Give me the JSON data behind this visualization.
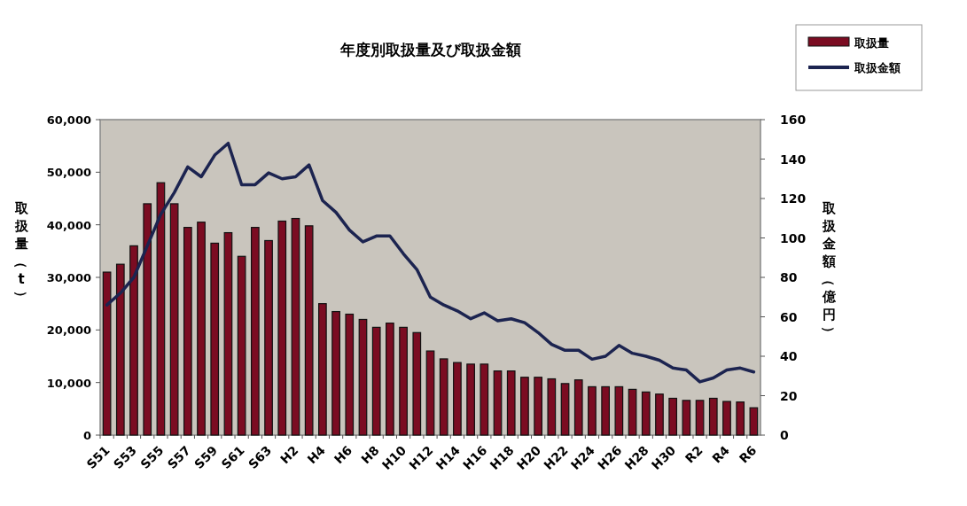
{
  "chart_data": {
    "type": "bar",
    "title": "年度別取扱量及び取扱金額",
    "ylabel": "取扱量（t）",
    "y2label": "取扱金額（億円）",
    "categories": [
      "S51",
      null,
      "S53",
      null,
      "S55",
      null,
      "S57",
      null,
      "S59",
      null,
      "S61",
      null,
      "S63",
      null,
      "H2",
      null,
      "H4",
      null,
      "H6",
      null,
      "H8",
      null,
      "H10",
      null,
      "H12",
      null,
      "H14",
      null,
      "H16",
      null,
      "H18",
      null,
      "H20",
      null,
      "H22",
      null,
      "H24",
      null,
      "H26",
      null,
      "H28",
      null,
      "H30",
      null,
      "R2",
      null,
      "R4",
      null,
      "R6"
    ],
    "series": [
      {
        "name": "取扱量",
        "color": "#7b0c22",
        "values": [
          31000,
          32500,
          36000,
          44000,
          48000,
          44000,
          39500,
          40500,
          36500,
          38500,
          34000,
          39500,
          37000,
          40700,
          41200,
          39800,
          25000,
          23500,
          23000,
          22000,
          20500,
          21300,
          20500,
          19500,
          16000,
          14500,
          13800,
          13500,
          13500,
          12200,
          12200,
          11000,
          11000,
          10700,
          9800,
          10500,
          9200,
          9200,
          9200,
          8700,
          8200,
          7800,
          7000,
          6600,
          6600,
          7000,
          6400,
          6300,
          5200
        ]
      },
      {
        "name": "取扱金額",
        "type": "line",
        "axis": "y2",
        "color": "#1c2450",
        "values": [
          66,
          72,
          80,
          96,
          112,
          123,
          136,
          131,
          142,
          148,
          127,
          127,
          133,
          130,
          131,
          137,
          119,
          113,
          104,
          98,
          101,
          101,
          92,
          84,
          70,
          66,
          63,
          59,
          62,
          58,
          59,
          57,
          52,
          46,
          43,
          43,
          38.5,
          40,
          45.5,
          41.5,
          40,
          38,
          34,
          33,
          27,
          29,
          33,
          34,
          32
        ]
      }
    ],
    "ylim": [
      0,
      60000
    ],
    "yticks": [
      0,
      {
        "value": 10000,
        "label": "10,000"
      },
      {
        "value": 20000,
        "label": "20,000"
      },
      {
        "value": 30000,
        "label": "30,000"
      },
      {
        "value": 40000,
        "label": "40,000"
      },
      {
        "value": 50000,
        "label": "50,000"
      },
      {
        "value": 60000,
        "label": "60,000"
      }
    ],
    "y2lim": [
      0,
      160
    ],
    "y2ticks": [
      0,
      20,
      40,
      60,
      80,
      100,
      120,
      140,
      160
    ],
    "legend": "top right",
    "grid": false
  }
}
